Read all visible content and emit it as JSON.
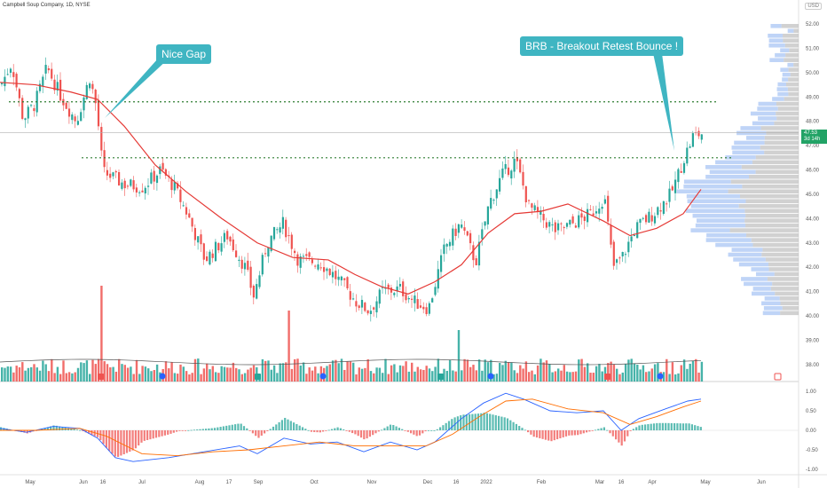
{
  "header": {
    "title": "Campbell Soup Company, 1D, NYSE",
    "currency": "USD"
  },
  "annotations": {
    "nice_gap": "Nice Gap",
    "brb": "BRB - Breakout Retest Bounce !"
  },
  "price_axis": {
    "ticks": [
      "52.00",
      "51.00",
      "50.00",
      "49.00",
      "48.00",
      "47.00",
      "46.00",
      "45.00",
      "44.00",
      "43.00",
      "42.00",
      "41.00",
      "40.00",
      "39.00",
      "38.00"
    ],
    "last_price": "47.53",
    "last_sub": "3d 14h"
  },
  "osc_axis": {
    "ticks": [
      "1.00",
      "0.50",
      "0.00",
      "-0.50",
      "-1.00"
    ]
  },
  "time_axis": {
    "labels": [
      "May",
      "Jun",
      "16",
      "Jul",
      "Aug",
      "17",
      "Sep",
      "Oct",
      "Nov",
      "Dec",
      "16",
      "2022",
      "Feb",
      "Mar",
      "16",
      "Apr",
      "May",
      "Jun"
    ]
  },
  "colors": {
    "up": "#26a69a",
    "down": "#ef5350",
    "ma": "#e53935",
    "macd": "#2962ff",
    "signal": "#ff6d00",
    "gap_line": "#2e7d32",
    "callout": "#3fb5c2",
    "vp_up": "#a4c2f4",
    "vp_down": "#bdbdbd"
  },
  "chart_data": {
    "type": "candlestick",
    "title": "Campbell Soup Company, 1D, NYSE",
    "y_range": [
      38,
      52.5
    ],
    "levels": [
      48.8,
      46.5
    ],
    "ma_points": [
      [
        0,
        49.6
      ],
      [
        40,
        49.5
      ],
      [
        80,
        49.2
      ],
      [
        110,
        48.9
      ],
      [
        140,
        47.8
      ],
      [
        175,
        46.2
      ],
      [
        210,
        45.1
      ],
      [
        250,
        44.0
      ],
      [
        290,
        43.0
      ],
      [
        330,
        42.4
      ],
      [
        370,
        42.3
      ],
      [
        400,
        41.7
      ],
      [
        430,
        41.2
      ],
      [
        460,
        40.9
      ],
      [
        490,
        41.4
      ],
      [
        520,
        42.1
      ],
      [
        550,
        43.4
      ],
      [
        580,
        44.2
      ],
      [
        610,
        44.3
      ],
      [
        640,
        44.6
      ],
      [
        680,
        43.9
      ],
      [
        710,
        43.3
      ],
      [
        740,
        43.6
      ],
      [
        770,
        44.2
      ],
      [
        790,
        45.2
      ]
    ],
    "close_path": [
      [
        0,
        49.5
      ],
      [
        12,
        50.4
      ],
      [
        25,
        48.1
      ],
      [
        38,
        48.7
      ],
      [
        52,
        50.2
      ],
      [
        68,
        49.0
      ],
      [
        85,
        48.0
      ],
      [
        100,
        49.8
      ],
      [
        108,
        48.5
      ],
      [
        115,
        45.9
      ],
      [
        140,
        45.4
      ],
      [
        160,
        45.3
      ],
      [
        180,
        46.0
      ],
      [
        195,
        45.3
      ],
      [
        210,
        44.2
      ],
      [
        230,
        42.3
      ],
      [
        255,
        43.3
      ],
      [
        275,
        42.0
      ],
      [
        285,
        40.8
      ],
      [
        300,
        43.0
      ],
      [
        318,
        43.8
      ],
      [
        335,
        42.3
      ],
      [
        360,
        42.2
      ],
      [
        380,
        41.5
      ],
      [
        400,
        40.6
      ],
      [
        415,
        40.2
      ],
      [
        430,
        41.0
      ],
      [
        450,
        41.1
      ],
      [
        465,
        40.6
      ],
      [
        482,
        40.3
      ],
      [
        500,
        42.8
      ],
      [
        518,
        43.8
      ],
      [
        535,
        42.2
      ],
      [
        550,
        44.6
      ],
      [
        565,
        45.8
      ],
      [
        580,
        46.4
      ],
      [
        595,
        44.5
      ],
      [
        610,
        44.0
      ],
      [
        625,
        43.5
      ],
      [
        645,
        43.8
      ],
      [
        665,
        44.2
      ],
      [
        680,
        44.9
      ],
      [
        690,
        42.0
      ],
      [
        700,
        42.4
      ],
      [
        715,
        43.6
      ],
      [
        735,
        44.2
      ],
      [
        755,
        45.0
      ],
      [
        770,
        46.5
      ],
      [
        780,
        47.4
      ],
      [
        790,
        47.5
      ]
    ]
  }
}
